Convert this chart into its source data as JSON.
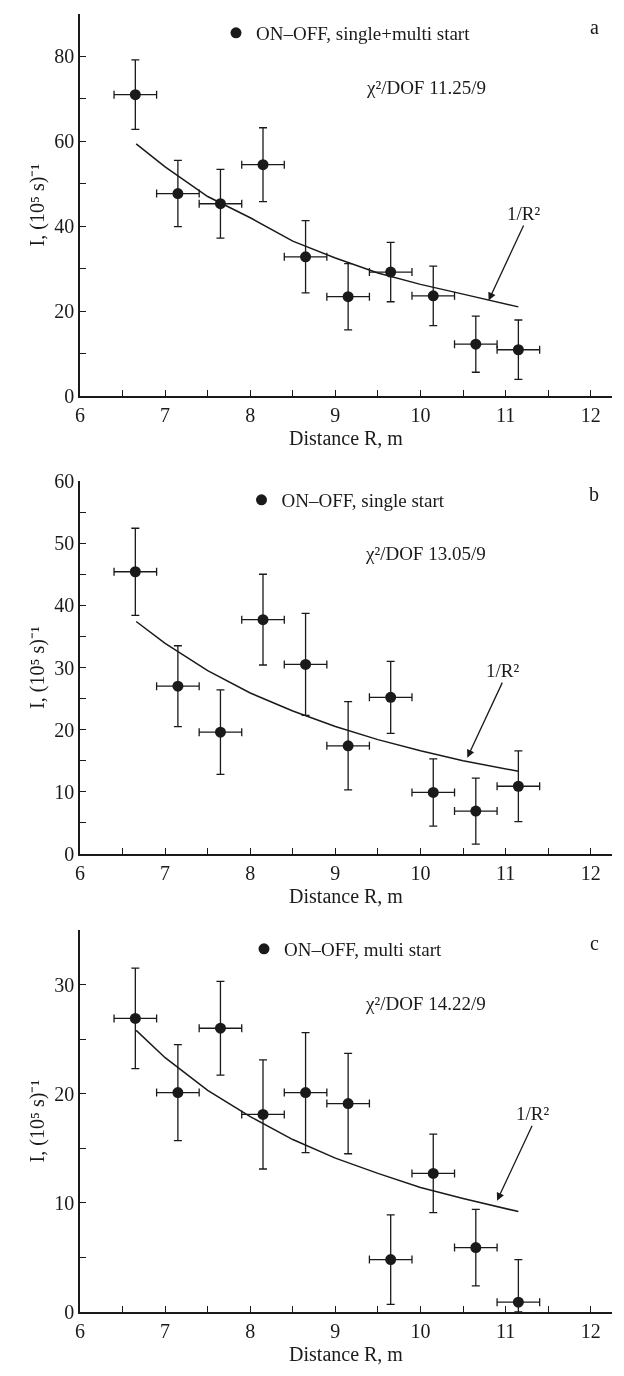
{
  "chart_data": [
    {
      "type": "scatter",
      "xlabel": "Distance R, m",
      "ylabel": "I, (10⁵ s)⁻¹",
      "legend": "top",
      "grid": false,
      "marker": "circle",
      "annotations": [
        "a",
        "χ²/DOF 11.25/9",
        {
          "text": "1/R²",
          "x": 10.8,
          "y": 22.5
        }
      ],
      "xlim": [
        6,
        12.25
      ],
      "xticks": [
        6,
        {
          "value": 6.5,
          "label": null
        },
        7,
        {
          "value": 7.5,
          "label": null
        },
        8,
        {
          "value": 8.5,
          "label": null
        },
        9,
        {
          "value": 9.5,
          "label": null
        },
        10,
        {
          "value": 10.5,
          "label": null
        },
        11,
        {
          "value": 11.5,
          "label": null
        },
        12
      ],
      "ylim": [
        0,
        90
      ],
      "yticks": [
        0,
        {
          "value": 10,
          "label": null
        },
        20,
        {
          "value": 30,
          "label": null
        },
        40,
        {
          "value": 50,
          "label": null
        },
        60,
        {
          "value": 70,
          "label": null
        },
        80
      ],
      "series": [
        {
          "name": "ON–OFF, single+multi start",
          "color": "#1a1a1a",
          "x": [
            6.65,
            7.15,
            7.65,
            8.15,
            8.65,
            9.15,
            9.65,
            10.15,
            10.65,
            11.15
          ],
          "values": [
            71.0,
            47.7,
            45.3,
            54.5,
            32.8,
            23.4,
            29.2,
            23.6,
            12.2,
            10.9
          ],
          "errors": [
            8.2,
            7.8,
            8.1,
            8.7,
            8.5,
            7.8,
            7,
            7,
            6.6,
            7
          ],
          "xerrors": [
            0.25,
            0.25,
            0.25,
            0.25,
            0.25,
            0.25,
            0.25,
            0.25,
            0.25,
            0.25
          ]
        },
        {
          "type": "line",
          "color": "#1a1a1a",
          "marker": "none",
          "line_style": "solid",
          "x": [
            6.66,
            7,
            7.5,
            8,
            8.5,
            9,
            9.5,
            10,
            10.5,
            11.15
          ],
          "values": [
            59.4,
            54,
            47,
            42,
            36.5,
            32.5,
            29,
            26.3,
            24,
            21
          ]
        }
      ]
    },
    {
      "type": "scatter",
      "xlabel": "Distance R, m",
      "ylabel": "I, (10⁵ s)⁻¹",
      "legend": "top",
      "grid": false,
      "marker": "circle",
      "annotations": [
        "b",
        "χ²/DOF 13.05/9",
        {
          "text": "1/R²",
          "x": 10.55,
          "y": 15.5
        }
      ],
      "xlim": [
        6,
        12.25
      ],
      "xticks": [
        6,
        {
          "value": 6.5,
          "label": null
        },
        7,
        {
          "value": 7.5,
          "label": null
        },
        8,
        {
          "value": 8.5,
          "label": null
        },
        9,
        {
          "value": 9.5,
          "label": null
        },
        10,
        {
          "value": 10.5,
          "label": null
        },
        11,
        {
          "value": 11.5,
          "label": null
        },
        12
      ],
      "ylim": [
        0,
        60
      ],
      "yticks": [
        0,
        {
          "value": 5,
          "label": null
        },
        10,
        {
          "value": 15,
          "label": null
        },
        20,
        {
          "value": 25,
          "label": null
        },
        30,
        {
          "value": 35,
          "label": null
        },
        40,
        {
          "value": 45,
          "label": null
        },
        50,
        {
          "value": 55,
          "label": null
        },
        60
      ],
      "series": [
        {
          "name": "ON–OFF, single start",
          "color": "#1a1a1a",
          "x": [
            6.65,
            7.15,
            7.65,
            8.15,
            8.65,
            9.15,
            9.65,
            10.15,
            10.65,
            11.15
          ],
          "values": [
            45.4,
            27.0,
            19.6,
            37.7,
            30.5,
            17.4,
            25.2,
            9.9,
            6.9,
            10.9
          ],
          "errors": [
            7,
            6.5,
            6.8,
            7.3,
            8.2,
            7.1,
            5.8,
            5.4,
            5.3,
            5.7
          ],
          "xerrors": [
            0.25,
            0.25,
            0.25,
            0.25,
            0.25,
            0.25,
            0.25,
            0.25,
            0.25,
            0.25
          ]
        },
        {
          "type": "line",
          "color": "#1a1a1a",
          "marker": "none",
          "line_style": "solid",
          "x": [
            6.66,
            7,
            7.5,
            8,
            8.5,
            9,
            9.5,
            10,
            10.5,
            11.15
          ],
          "values": [
            37.4,
            33.9,
            29.5,
            25.9,
            23,
            20.5,
            18.4,
            16.6,
            15,
            13.3
          ]
        }
      ]
    },
    {
      "type": "scatter",
      "xlabel": "Distance R, m",
      "ylabel": "I, (10⁵ s)⁻¹",
      "legend": "top",
      "grid": false,
      "marker": "circle",
      "annotations": [
        "c",
        "χ²/DOF 14.22/9",
        {
          "text": "1/R²",
          "x": 10.9,
          "y": 10.2
        }
      ],
      "xlim": [
        6,
        12.25
      ],
      "xticks": [
        6,
        {
          "value": 6.5,
          "label": null
        },
        7,
        {
          "value": 7.5,
          "label": null
        },
        8,
        {
          "value": 8.5,
          "label": null
        },
        9,
        {
          "value": 9.5,
          "label": null
        },
        10,
        {
          "value": 10.5,
          "label": null
        },
        11,
        {
          "value": 11.5,
          "label": null
        },
        12
      ],
      "ylim": [
        0,
        35
      ],
      "yticks": [
        0,
        {
          "value": 5,
          "label": null
        },
        10,
        {
          "value": 15,
          "label": null
        },
        20,
        {
          "value": 25,
          "label": null
        },
        30
      ],
      "series": [
        {
          "name": "ON–OFF, multi start",
          "color": "#1a1a1a",
          "x": [
            6.65,
            7.15,
            7.65,
            8.15,
            8.65,
            9.15,
            9.65,
            10.15,
            10.65,
            11.15
          ],
          "values": [
            26.9,
            20.1,
            26.0,
            18.1,
            20.1,
            19.1,
            4.8,
            12.7,
            5.9,
            0.9
          ],
          "errors": [
            4.6,
            4.4,
            4.3,
            5,
            5.5,
            4.6,
            4.1,
            3.6,
            3.5,
            [
              0,
              4.8
            ]
          ],
          "xerrors": [
            0.25,
            0.25,
            0.25,
            0.25,
            0.25,
            0.25,
            0.25,
            0.25,
            0.25,
            0.25
          ]
        },
        {
          "type": "line",
          "color": "#1a1a1a",
          "marker": "none",
          "line_style": "solid",
          "x": [
            6.66,
            7,
            7.5,
            8,
            8.5,
            9,
            9.5,
            10,
            10.5,
            11.15
          ],
          "values": [
            25.8,
            23.3,
            20.3,
            17.9,
            15.8,
            14.1,
            12.7,
            11.4,
            10.4,
            9.2
          ]
        }
      ]
    }
  ]
}
